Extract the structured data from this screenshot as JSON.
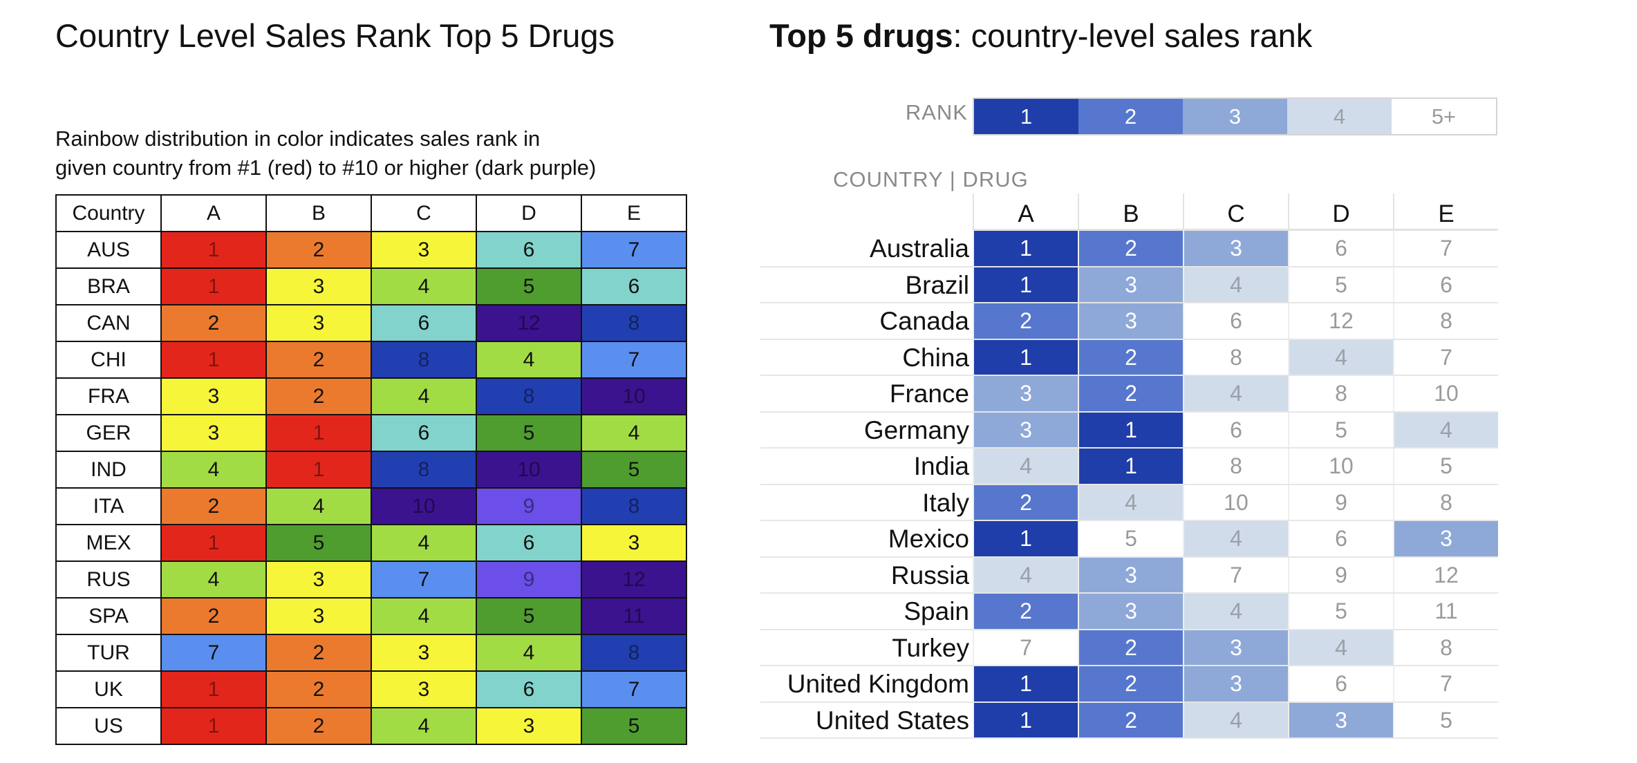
{
  "left_title": "Country Level Sales Rank Top 5 Drugs",
  "right_title_bold": "Top 5 drugs",
  "right_title_rest": ": country-level sales rank",
  "subtitle_line1": "Rainbow distribution in color indicates sales rank in",
  "subtitle_line2": "given country from #1 (red) to #10 or higher (dark purple)",
  "rank_label": "RANK",
  "country_drug_label": "COUNTRY | DRUG",
  "colors": {
    "rainbow": {
      "1": "#e3261c",
      "2": "#ec7a2e",
      "3": "#f6f53a",
      "4": "#a2dc45",
      "5": "#4f9d2f",
      "6": "#82d3cb",
      "7": "#5a8ff0",
      "8": "#213fb0",
      "9": "#6b4fe8",
      "10": "#3b138f",
      "11": "#3b138f",
      "12": "#3b138f"
    },
    "mono": {
      "1": "#1f3ea9",
      "2": "#5677cd",
      "3": "#8ea8d8",
      "4": "#d0dcea",
      "5+": "#ffffff"
    },
    "mono_text": {
      "1": "#ffffff",
      "2": "#ffffff",
      "3": "#ffffff",
      "4": "#9aa0a8",
      "5+": "#9a9a9a"
    }
  },
  "chart_data": [
    {
      "type": "heatmap",
      "title": "Country Level Sales Rank Top 5 Drugs",
      "subtitle": "Rainbow distribution in color indicates sales rank in given country from #1 (red) to #10 or higher (dark purple)",
      "corner_header": "Country",
      "columns": [
        "A",
        "B",
        "C",
        "D",
        "E"
      ],
      "rows": [
        "AUS",
        "BRA",
        "CAN",
        "CHI",
        "FRA",
        "GER",
        "IND",
        "ITA",
        "MEX",
        "RUS",
        "SPA",
        "TUR",
        "UK",
        "US"
      ],
      "values": [
        [
          1,
          2,
          3,
          6,
          7
        ],
        [
          1,
          3,
          4,
          5,
          6
        ],
        [
          2,
          3,
          6,
          12,
          8
        ],
        [
          1,
          2,
          8,
          4,
          7
        ],
        [
          3,
          2,
          4,
          8,
          10
        ],
        [
          3,
          1,
          6,
          5,
          4
        ],
        [
          4,
          1,
          8,
          10,
          5
        ],
        [
          2,
          4,
          10,
          9,
          8
        ],
        [
          1,
          5,
          4,
          6,
          3
        ],
        [
          4,
          3,
          7,
          9,
          12
        ],
        [
          2,
          3,
          4,
          5,
          11
        ],
        [
          7,
          2,
          3,
          4,
          8
        ],
        [
          1,
          2,
          3,
          6,
          7
        ],
        [
          1,
          2,
          4,
          3,
          5
        ]
      ]
    },
    {
      "type": "heatmap",
      "title": "Top 5 drugs: country-level sales rank",
      "legend_title": "RANK",
      "legend": [
        "1",
        "2",
        "3",
        "4",
        "5+"
      ],
      "columns": [
        "A",
        "B",
        "C",
        "D",
        "E"
      ],
      "rows": [
        "Australia",
        "Brazil",
        "Canada",
        "China",
        "France",
        "Germany",
        "India",
        "Italy",
        "Mexico",
        "Russia",
        "Spain",
        "Turkey",
        "United Kingdom",
        "United States"
      ],
      "values": [
        [
          1,
          2,
          3,
          6,
          7
        ],
        [
          1,
          3,
          4,
          5,
          6
        ],
        [
          2,
          3,
          6,
          12,
          8
        ],
        [
          1,
          2,
          8,
          4,
          7
        ],
        [
          3,
          2,
          4,
          8,
          10
        ],
        [
          3,
          1,
          6,
          5,
          4
        ],
        [
          4,
          1,
          8,
          10,
          5
        ],
        [
          2,
          4,
          10,
          9,
          8
        ],
        [
          1,
          5,
          4,
          6,
          3
        ],
        [
          4,
          3,
          7,
          9,
          12
        ],
        [
          2,
          3,
          4,
          5,
          11
        ],
        [
          7,
          2,
          3,
          4,
          8
        ],
        [
          1,
          2,
          3,
          6,
          7
        ],
        [
          1,
          2,
          4,
          3,
          5
        ]
      ]
    }
  ]
}
